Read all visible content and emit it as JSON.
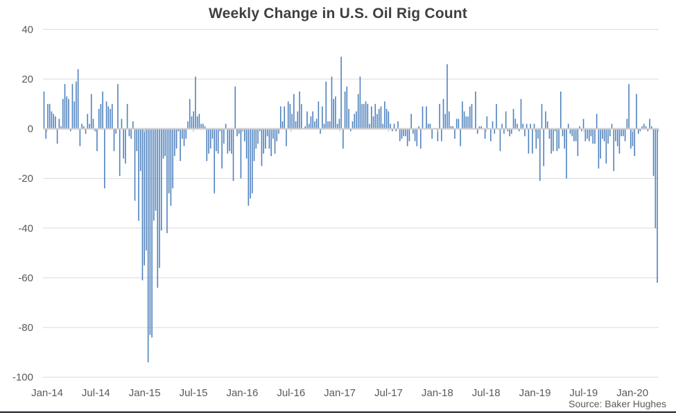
{
  "chart": {
    "title": "Weekly Change in U.S. Oil Rig Count",
    "source": "Source: Baker Hughes"
  },
  "chart_data": {
    "type": "bar",
    "title": "Weekly Change in U.S. Oil Rig Count",
    "source": "Source: Baker Hughes",
    "xlabel": "",
    "ylabel": "",
    "frequency": "weekly",
    "x_start": "Jan-2014",
    "x_end": "Apr-2020",
    "ylim": [
      -100,
      40
    ],
    "y_ticks": [
      40,
      20,
      0,
      -20,
      -40,
      -60,
      -80,
      -100
    ],
    "x_tick_labels": [
      "Jan-14",
      "Jul-14",
      "Jan-15",
      "Jul-15",
      "Jan-16",
      "Jul-16",
      "Jan-17",
      "Jul-17",
      "Jan-18",
      "Jul-18",
      "Jan-19",
      "Jul-19",
      "Jan-20"
    ],
    "grid": "horizontal",
    "legend": "none",
    "bar_color": "#4e81bd",
    "gridline_color": "#d9d9d9",
    "axis_text_color": "#595959",
    "values": [
      15,
      -4,
      10,
      10,
      7,
      6,
      5,
      -6,
      4,
      1,
      12,
      18,
      13,
      12,
      -1,
      18,
      11,
      19,
      24,
      -7,
      2,
      1,
      -2,
      6,
      2,
      14,
      4,
      -1,
      -9,
      8,
      10,
      15,
      -24,
      11,
      9,
      8,
      10,
      -9,
      -2,
      18,
      -19,
      4,
      -12,
      -14,
      10,
      -3,
      -4,
      3,
      -29,
      -9,
      -37,
      -17,
      -61,
      -55,
      -49,
      -94,
      -83,
      -84,
      -37,
      -33,
      -64,
      -56,
      -41,
      -12,
      -11,
      -42,
      -26,
      -31,
      -24,
      -11,
      -8,
      -1,
      -13,
      -4,
      -7,
      -4,
      3,
      12,
      5,
      7,
      21,
      5,
      6,
      2,
      2,
      1,
      -13,
      -10,
      -8,
      -4,
      -26,
      -9,
      -10,
      -1,
      -16,
      -6,
      2,
      -10,
      -9,
      -10,
      -21,
      17,
      -3,
      -2,
      -20,
      -1,
      -5,
      -12,
      -31,
      -28,
      -26,
      -13,
      -8,
      -6,
      -1,
      -15,
      -10,
      -8,
      -3,
      -8,
      -11,
      -4,
      -10,
      -5,
      -2,
      9,
      3,
      9,
      -7,
      11,
      10,
      6,
      14,
      3,
      7,
      15,
      10,
      0,
      1,
      7,
      2,
      5,
      7,
      3,
      4,
      11,
      -2,
      9,
      2,
      19,
      3,
      3,
      21,
      12,
      13,
      2,
      4,
      29,
      -8,
      15,
      17,
      8,
      -1,
      3,
      6,
      7,
      14,
      21,
      10,
      10,
      11,
      10,
      2,
      9,
      5,
      10,
      6,
      8,
      9,
      2,
      11,
      8,
      7,
      2,
      -1,
      2,
      -1,
      3,
      -5,
      -4,
      -3,
      -3,
      -7,
      -5,
      6,
      -2,
      -5,
      -7,
      1,
      -8,
      9,
      0,
      9,
      2,
      2,
      -4,
      0,
      0,
      -5,
      10,
      -5,
      12,
      6,
      26,
      7,
      1,
      1,
      -4,
      4,
      4,
      -7,
      11,
      7,
      5,
      5,
      9,
      10,
      0,
      15,
      -2,
      1,
      1,
      0,
      -4,
      5,
      0,
      -5,
      3,
      -2,
      10,
      0,
      -9,
      2,
      -2,
      7,
      -1,
      -3,
      -2,
      8,
      4,
      2,
      -1,
      12,
      2,
      -3,
      2,
      -10,
      2,
      -10,
      2,
      -8,
      -4,
      -21,
      10,
      -15,
      7,
      3,
      -4,
      -10,
      -9,
      -1,
      -9,
      -8,
      15,
      -3,
      -8,
      -20,
      2,
      -2,
      -3,
      -5,
      -5,
      -11,
      1,
      -1,
      4,
      -5,
      -4,
      -5,
      -3,
      -6,
      -6,
      6,
      -16,
      -12,
      -4,
      -5,
      -14,
      -6,
      -3,
      2,
      -17,
      -5,
      -7,
      -10,
      -3,
      -3,
      -5,
      4,
      18,
      -8,
      -7,
      -11,
      14,
      -2,
      -1,
      1,
      2,
      1,
      -1,
      4,
      1,
      -19,
      -40,
      -62
    ]
  }
}
